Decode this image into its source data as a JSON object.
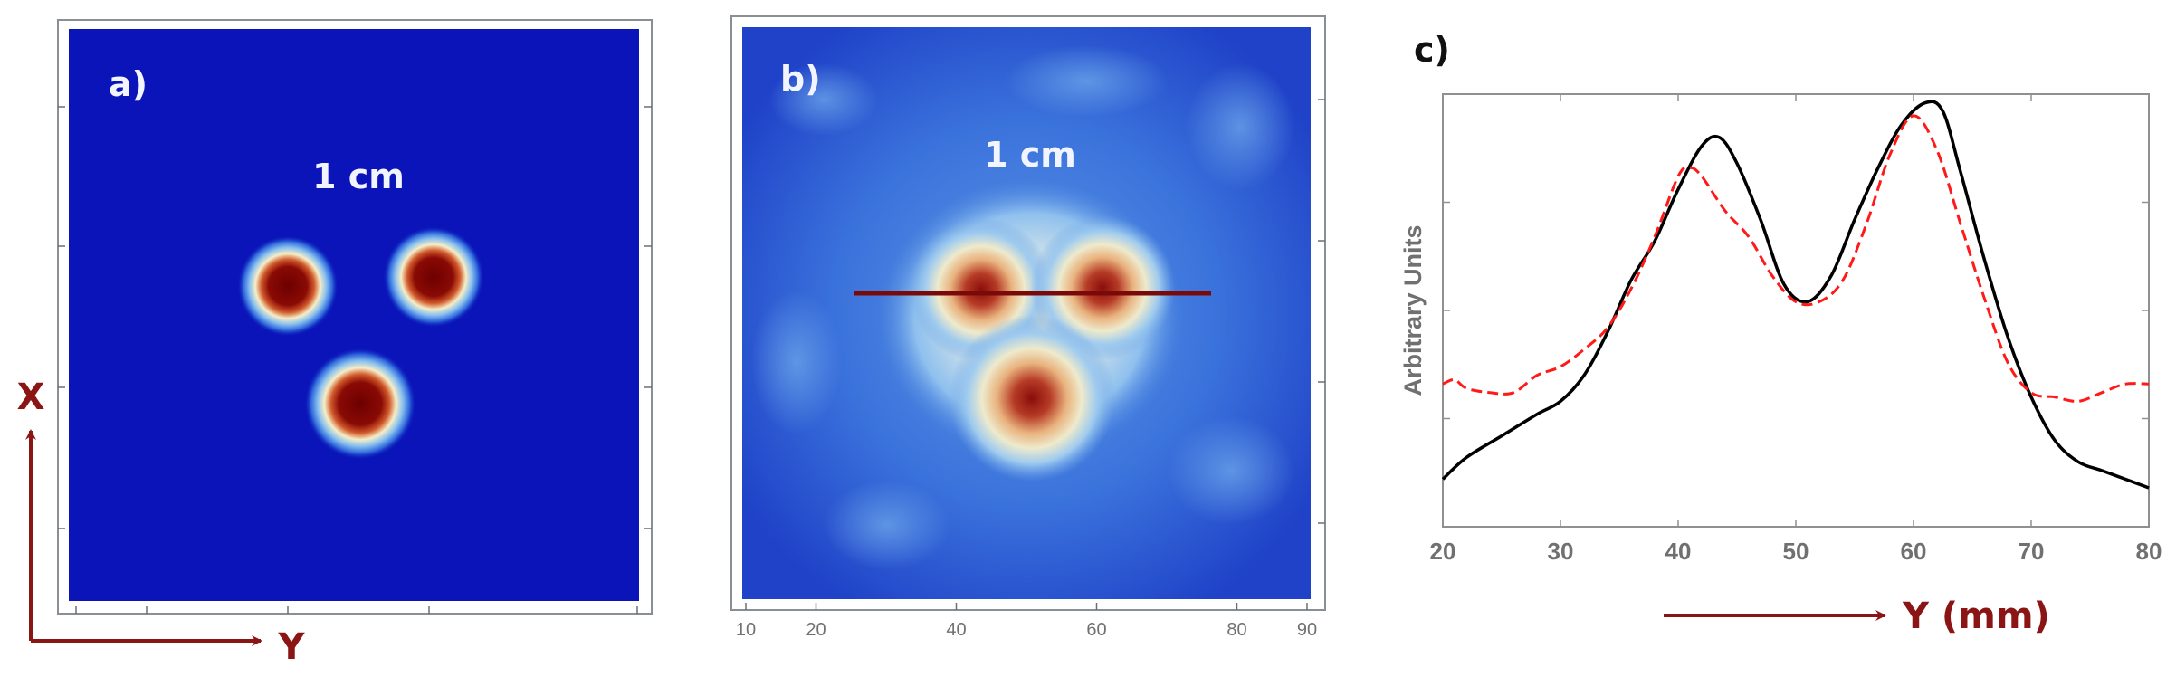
{
  "colors": {
    "axis_red": "#8b1414",
    "map_background": "#0a14b8",
    "map_hot": "#7a0000",
    "line_profile_bar": "#7a0a0a",
    "series_solid": "#000000",
    "series_dashed": "#ff1a1a",
    "tick_grey": "#707070"
  },
  "panels": {
    "a": {
      "label": "a)",
      "scale_text": "1 cm"
    },
    "b": {
      "label": "b)",
      "scale_text": "1 cm",
      "x_ticks": [
        "10",
        "20",
        "40",
        "60",
        "80",
        "90"
      ]
    },
    "c": {
      "label": "c)"
    }
  },
  "axes_arrows": {
    "vertical_label": "X",
    "horizontal_label": "Y"
  },
  "chart_data": [
    {
      "type": "heatmap",
      "panel": "a)",
      "annotation": "1 cm",
      "spots": 3,
      "colormap": [
        "#0a14b8",
        "#2b5fd6",
        "#7ab3ea",
        "#f2f0c8",
        "#e8a060",
        "#c03020",
        "#7a0000"
      ]
    },
    {
      "type": "heatmap",
      "panel": "b)",
      "annotation": "1 cm",
      "x_ticks": [
        10,
        20,
        40,
        60,
        80,
        90
      ],
      "spots": 3,
      "profile_line": true
    },
    {
      "type": "line",
      "panel": "c)",
      "xlabel": "Y (mm)",
      "ylabel": "Arbitrary Units",
      "xlim": [
        20,
        80
      ],
      "ylim": [
        0,
        1
      ],
      "x_ticks": [
        20,
        30,
        40,
        50,
        60,
        70,
        80
      ],
      "series": [
        {
          "style": "solid",
          "color": "#000000",
          "x": [
            20,
            22,
            25,
            28,
            30,
            32,
            34,
            36,
            38,
            40,
            42,
            43.5,
            45,
            47,
            49,
            51,
            53,
            55,
            57,
            59,
            61,
            62.5,
            64,
            66,
            68,
            70,
            72,
            74,
            76,
            78,
            80
          ],
          "y": [
            0.11,
            0.16,
            0.21,
            0.26,
            0.29,
            0.35,
            0.45,
            0.57,
            0.66,
            0.78,
            0.88,
            0.9,
            0.84,
            0.71,
            0.56,
            0.52,
            0.58,
            0.71,
            0.83,
            0.93,
            0.98,
            0.96,
            0.82,
            0.62,
            0.44,
            0.3,
            0.2,
            0.15,
            0.13,
            0.11,
            0.09
          ]
        },
        {
          "style": "dashed",
          "color": "#ff1a1a",
          "x": [
            20,
            21,
            22,
            24,
            26,
            28,
            30,
            32,
            34,
            36,
            38,
            40,
            41,
            42,
            44,
            46,
            48,
            50,
            52,
            54,
            56,
            58,
            60,
            62,
            64,
            66,
            68,
            70,
            72,
            74,
            76,
            78,
            80
          ],
          "y": [
            0.33,
            0.34,
            0.32,
            0.31,
            0.31,
            0.35,
            0.37,
            0.41,
            0.46,
            0.55,
            0.67,
            0.81,
            0.83,
            0.81,
            0.73,
            0.67,
            0.58,
            0.52,
            0.52,
            0.57,
            0.7,
            0.86,
            0.95,
            0.87,
            0.7,
            0.53,
            0.38,
            0.31,
            0.3,
            0.29,
            0.31,
            0.33,
            0.33
          ]
        }
      ]
    }
  ]
}
